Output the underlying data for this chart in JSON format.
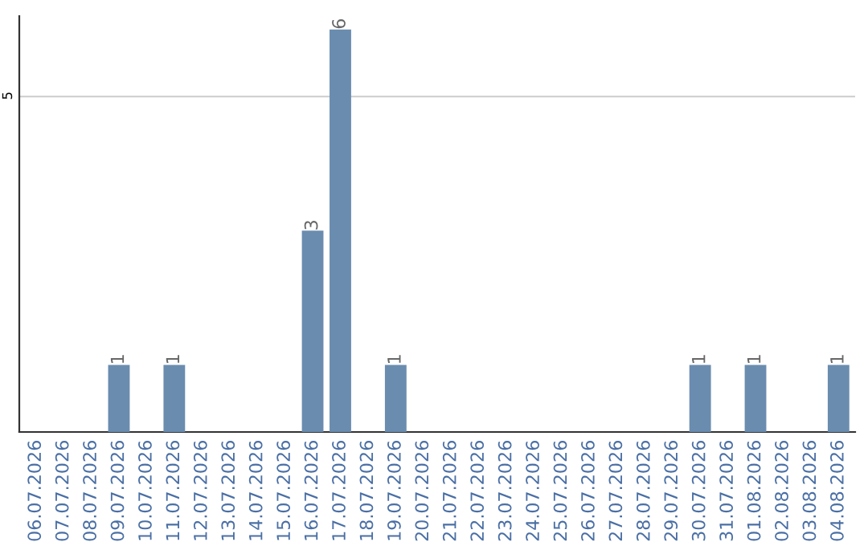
{
  "chart_data": {
    "type": "bar",
    "categories": [
      "06.07.2026",
      "07.07.2026",
      "08.07.2026",
      "09.07.2026",
      "10.07.2026",
      "11.07.2026",
      "12.07.2026",
      "13.07.2026",
      "14.07.2026",
      "15.07.2026",
      "16.07.2026",
      "17.07.2026",
      "18.07.2026",
      "19.07.2026",
      "20.07.2026",
      "21.07.2026",
      "22.07.2026",
      "23.07.2026",
      "24.07.2026",
      "25.07.2026",
      "26.07.2026",
      "27.07.2026",
      "28.07.2026",
      "29.07.2026",
      "30.07.2026",
      "31.07.2026",
      "01.08.2026",
      "02.08.2026",
      "03.08.2026",
      "04.08.2026"
    ],
    "values": [
      0,
      0,
      0,
      1,
      0,
      1,
      0,
      0,
      0,
      0,
      3,
      6,
      0,
      1,
      0,
      0,
      0,
      0,
      0,
      0,
      0,
      0,
      0,
      0,
      1,
      0,
      1,
      0,
      0,
      1
    ],
    "value_labels": [
      null,
      null,
      null,
      "1",
      null,
      "1",
      null,
      null,
      null,
      null,
      "3",
      "6",
      null,
      "1",
      null,
      null,
      null,
      null,
      null,
      null,
      null,
      null,
      null,
      null,
      "1",
      null,
      "1",
      null,
      null,
      "1"
    ],
    "color": "#6a8caf",
    "ylim": [
      0,
      6.2
    ],
    "yticks": [
      5
    ],
    "grid": "y"
  }
}
